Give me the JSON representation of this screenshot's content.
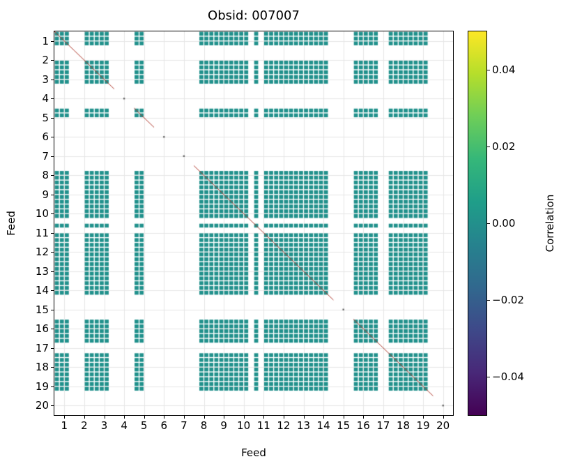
{
  "chart_data": {
    "type": "heatmap",
    "title": "Obsid: 007007",
    "xlabel": "Feed",
    "ylabel": "Feed",
    "x_ticks": [
      "1",
      "2",
      "3",
      "4",
      "5",
      "6",
      "7",
      "8",
      "9",
      "10",
      "11",
      "12",
      "13",
      "14",
      "15",
      "16",
      "17",
      "18",
      "19",
      "20"
    ],
    "y_ticks": [
      "1",
      "2",
      "3",
      "4",
      "5",
      "6",
      "7",
      "8",
      "9",
      "10",
      "11",
      "12",
      "13",
      "14",
      "15",
      "16",
      "17",
      "18",
      "19",
      "20"
    ],
    "n_feeds": 20,
    "bands_per_feed": 4,
    "value_at_filled_cells": 0.0,
    "cell_color": "#21918c",
    "diagonal_line_color": "#b03a2e",
    "grid": true,
    "grid_color": "#e6e6e6",
    "feeds_with_data": [
      1,
      2,
      3,
      5,
      8,
      9,
      10,
      11,
      12,
      13,
      14,
      16,
      17,
      18,
      19
    ],
    "feeds_without_data": [
      4,
      6,
      7,
      15,
      20
    ],
    "active_bands": {
      "1": [
        0,
        1,
        2
      ],
      "2": [
        2,
        3
      ],
      "3": [
        0,
        1,
        2
      ],
      "4": [],
      "5": [
        0,
        1
      ],
      "6": [],
      "7": [],
      "8": [
        1,
        2,
        3
      ],
      "9": [
        0,
        1,
        2,
        3
      ],
      "10": [
        0,
        1,
        2
      ],
      "11": [
        0,
        2,
        3
      ],
      "12": [
        0,
        1,
        2,
        3
      ],
      "13": [
        0,
        1,
        2,
        3
      ],
      "14": [
        0,
        1,
        2
      ],
      "15": [],
      "16": [
        0,
        1,
        2,
        3
      ],
      "17": [
        0,
        3
      ],
      "18": [
        0,
        1,
        2,
        3
      ],
      "19": [
        0,
        1,
        2
      ],
      "20": []
    },
    "colorbar": {
      "label": "Correlation",
      "colormap": "viridis",
      "vmin": -0.05,
      "vmax": 0.05,
      "ticks": [
        {
          "value": 0.04,
          "label": "0.04"
        },
        {
          "value": 0.02,
          "label": "0.02"
        },
        {
          "value": 0.0,
          "label": "0.00"
        },
        {
          "value": -0.02,
          "label": "−0.02"
        },
        {
          "value": -0.04,
          "label": "−0.04"
        }
      ],
      "gradient_stops": [
        "#440154",
        "#482878",
        "#3e4989",
        "#31688e",
        "#26828e",
        "#1f9e89",
        "#35b779",
        "#6ece58",
        "#b5de2b",
        "#fde725"
      ]
    }
  }
}
